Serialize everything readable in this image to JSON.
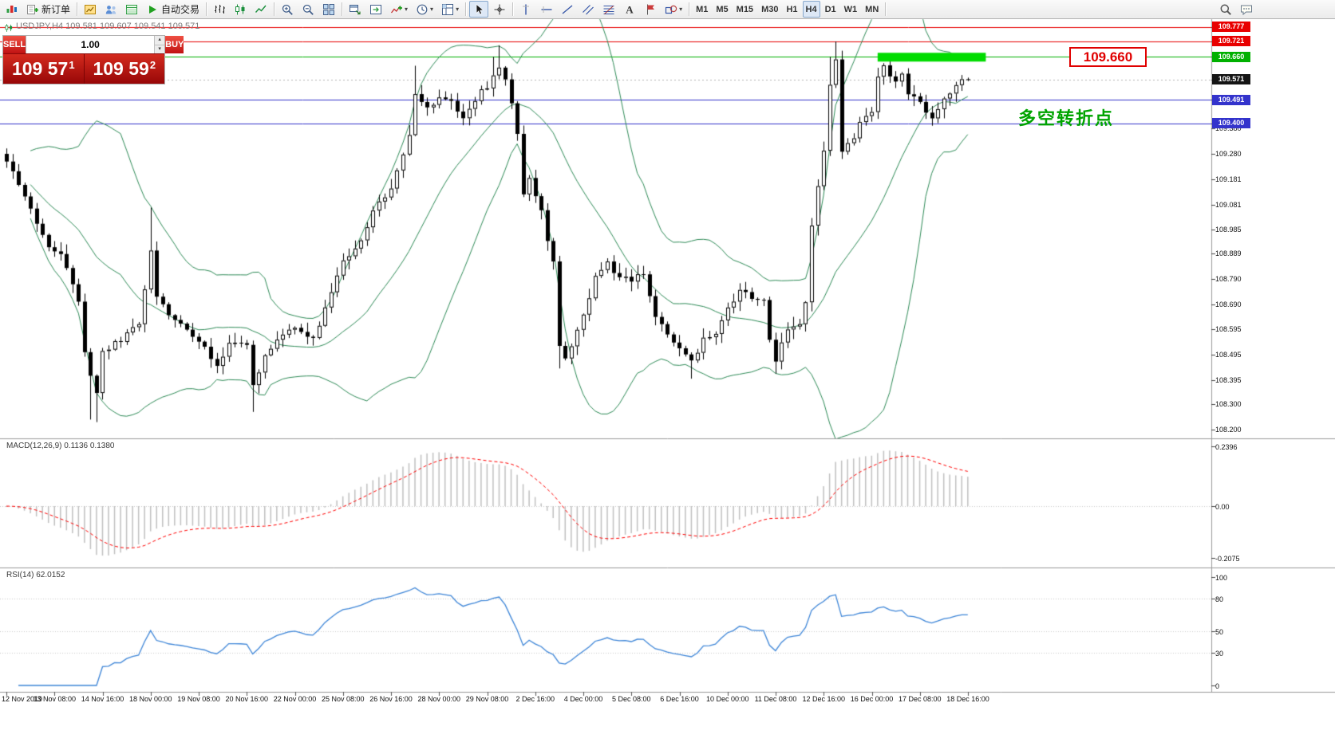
{
  "colors": {
    "accent_red": "#e00000",
    "hline_blue": "#3333cc",
    "hline_green": "#00b000",
    "highlight_green": "#00dc00",
    "bollinger_green": "#2e8b57",
    "macd_histogram": "#c0c0c0",
    "macd_signal": "#ff0000",
    "rsi_blue": "#3e86d8",
    "bid_box": "#141414"
  },
  "toolbar": {
    "groups": [
      {
        "items": [
          {
            "name": "app-logo",
            "icon": "logo",
            "interactable": false
          },
          {
            "name": "new-order-button",
            "icon": "new-order",
            "label": "新订单"
          }
        ]
      },
      {
        "items": [
          {
            "name": "charts-button",
            "icon": "chart-window"
          },
          {
            "name": "profiles-button",
            "icon": "profiles"
          },
          {
            "name": "data-window-button",
            "icon": "data-window"
          },
          {
            "name": "autotrading-button",
            "icon": "play",
            "label": "自动交易"
          }
        ]
      },
      {
        "items": [
          {
            "name": "bar-chart-button",
            "icon": "bars"
          },
          {
            "name": "candle-chart-button",
            "icon": "candles"
          },
          {
            "name": "line-chart-button",
            "icon": "line"
          }
        ]
      },
      {
        "items": [
          {
            "name": "zoom-in-button",
            "icon": "zoom-in"
          },
          {
            "name": "zoom-out-button",
            "icon": "zoom-out"
          },
          {
            "name": "tile-windows-button",
            "icon": "tile"
          }
        ]
      },
      {
        "items": [
          {
            "name": "auto-arrange-button",
            "icon": "arrange"
          },
          {
            "name": "chart-shift-button",
            "icon": "shift"
          },
          {
            "name": "indicators-button",
            "icon": "indicators",
            "dropdown": true
          },
          {
            "name": "periods-button",
            "icon": "clock",
            "dropdown": true
          },
          {
            "name": "templates-button",
            "icon": "template",
            "dropdown": true
          }
        ]
      },
      {
        "items": [
          {
            "name": "cursor-button",
            "icon": "cursor",
            "selected": true
          },
          {
            "name": "crosshair-button",
            "icon": "crosshair"
          }
        ]
      },
      {
        "items": [
          {
            "name": "vertical-line-button",
            "icon": "vline"
          },
          {
            "name": "horizontal-line-button",
            "icon": "hline"
          },
          {
            "name": "trendline-button",
            "icon": "trendline"
          },
          {
            "name": "channel-button",
            "icon": "channel"
          },
          {
            "name": "fibonacci-button",
            "icon": "fibonacci"
          },
          {
            "name": "text-label-button",
            "icon": "text"
          },
          {
            "name": "arrow-tool-button",
            "icon": "arrow-flag"
          },
          {
            "name": "shapes-button",
            "icon": "shapes",
            "dropdown": true
          }
        ]
      },
      {
        "timeframes": true,
        "items": [
          {
            "label": "M1"
          },
          {
            "label": "M5"
          },
          {
            "label": "M15"
          },
          {
            "label": "M30"
          },
          {
            "label": "H1"
          },
          {
            "label": "H4",
            "selected": true
          },
          {
            "label": "D1"
          },
          {
            "label": "W1"
          },
          {
            "label": "MN"
          }
        ]
      },
      {
        "right": true,
        "items": [
          {
            "name": "search-button",
            "icon": "search"
          },
          {
            "name": "quick-message-button",
            "icon": "chat"
          }
        ]
      }
    ]
  },
  "chart_header": {
    "symbol_info": "USDJPY,H4 109.581 109.607 109.541 109.571"
  },
  "trade_panel": {
    "sell_label": "SELL",
    "buy_label": "BUY",
    "lot_value": "1.00",
    "bid_main": "109 57",
    "bid_point": "1",
    "ask_main": "109 59",
    "ask_point": "2"
  },
  "indicator_labels": {
    "macd": "MACD(12,26,9) 0.1136 0.1380",
    "rsi": "RSI(14) 62.0152"
  },
  "annotations": {
    "turning_point": "多空转折点",
    "price_callout": "109.660"
  },
  "chart_data": {
    "type": "candlestick",
    "symbol": "USDJPY",
    "timeframe": "H4",
    "ohlc_display": {
      "open": "109.581",
      "high": "109.607",
      "low": "109.541",
      "close": "109.571"
    },
    "ylim": [
      108.2,
      109.82
    ],
    "price_axis_labels": [
      "109.380",
      "109.280",
      "109.181",
      "109.081",
      "108.985",
      "108.889",
      "108.790",
      "108.690",
      "108.595",
      "108.495",
      "108.395",
      "108.300",
      "108.200"
    ],
    "macd_axis_labels": [
      "0.2396",
      "0.00",
      "-0.2075"
    ],
    "rsi_axis_labels": [
      "100",
      "80",
      "50",
      "30",
      "0"
    ],
    "time_axis_labels": [
      "12 Nov 2019",
      "13 Nov 08:00",
      "14 Nov 16:00",
      "18 Nov 00:00",
      "19 Nov 08:00",
      "20 Nov 16:00",
      "22 Nov 00:00",
      "25 Nov 08:00",
      "26 Nov 16:00",
      "28 Nov 00:00",
      "29 Nov 08:00",
      "2 Dec 16:00",
      "4 Dec 00:00",
      "5 Dec 08:00",
      "6 Dec 16:00",
      "10 Dec 00:00",
      "11 Dec 08:00",
      "12 Dec 16:00",
      "16 Dec 00:00",
      "17 Dec 08:00",
      "18 Dec 16:00"
    ],
    "horizontal_lines": [
      {
        "label": "109.777",
        "value": 109.777,
        "color": "#e80000"
      },
      {
        "label": "109.721",
        "value": 109.721,
        "color": "#e80000"
      },
      {
        "label": "109.660",
        "value": 109.66,
        "color": "#00b000"
      },
      {
        "label": "109.491",
        "value": 109.491,
        "color": "#3333cc"
      },
      {
        "label": "109.400",
        "value": 109.4,
        "color": "#3333cc"
      }
    ],
    "bid_price": {
      "label": "109.571",
      "value": 109.571
    },
    "highlight_rect": {
      "value": 109.66,
      "i_start": 145,
      "i_end": 163
    },
    "candles": {
      "count": 161,
      "close_anchors": [
        [
          0,
          109.25
        ],
        [
          3,
          109.12
        ],
        [
          6,
          108.95
        ],
        [
          9,
          108.88
        ],
        [
          12,
          108.7
        ],
        [
          13,
          108.5
        ],
        [
          15,
          108.35
        ],
        [
          16,
          108.5
        ],
        [
          19,
          108.55
        ],
        [
          22,
          108.62
        ],
        [
          24,
          108.9
        ],
        [
          25,
          108.72
        ],
        [
          27,
          108.65
        ],
        [
          32,
          108.55
        ],
        [
          35,
          108.45
        ],
        [
          37,
          108.55
        ],
        [
          40,
          108.52
        ],
        [
          41,
          108.38
        ],
        [
          43,
          108.48
        ],
        [
          45,
          108.55
        ],
        [
          48,
          108.6
        ],
        [
          51,
          108.55
        ],
        [
          53,
          108.68
        ],
        [
          56,
          108.85
        ],
        [
          59,
          108.95
        ],
        [
          61,
          109.05
        ],
        [
          64,
          109.15
        ],
        [
          67,
          109.35
        ],
        [
          68,
          109.5
        ],
        [
          70,
          109.45
        ],
        [
          72,
          109.5
        ],
        [
          74,
          109.48
        ],
        [
          76,
          109.42
        ],
        [
          78,
          109.5
        ],
        [
          80,
          109.55
        ],
        [
          82,
          109.62
        ],
        [
          83,
          109.58
        ],
        [
          85,
          109.35
        ],
        [
          86,
          109.12
        ],
        [
          87,
          109.18
        ],
        [
          89,
          109.05
        ],
        [
          91,
          108.85
        ],
        [
          92,
          108.52
        ],
        [
          93,
          108.48
        ],
        [
          95,
          108.6
        ],
        [
          96,
          108.65
        ],
        [
          98,
          108.8
        ],
        [
          100,
          108.85
        ],
        [
          102,
          108.8
        ],
        [
          104,
          108.78
        ],
        [
          106,
          108.82
        ],
        [
          108,
          108.65
        ],
        [
          110,
          108.58
        ],
        [
          112,
          108.52
        ],
        [
          114,
          108.48
        ],
        [
          116,
          108.55
        ],
        [
          118,
          108.58
        ],
        [
          120,
          108.68
        ],
        [
          122,
          108.75
        ],
        [
          124,
          108.72
        ],
        [
          126,
          108.7
        ],
        [
          127,
          108.55
        ],
        [
          128,
          108.48
        ],
        [
          130,
          108.58
        ],
        [
          132,
          108.62
        ],
        [
          133,
          108.7
        ],
        [
          134,
          109.0
        ],
        [
          136,
          109.3
        ],
        [
          137,
          109.55
        ],
        [
          138,
          109.65
        ],
        [
          139,
          109.28
        ],
        [
          141,
          109.35
        ],
        [
          142,
          109.4
        ],
        [
          144,
          109.45
        ],
        [
          145,
          109.58
        ],
        [
          146,
          109.62
        ],
        [
          148,
          109.55
        ],
        [
          149,
          109.58
        ],
        [
          150,
          109.52
        ],
        [
          152,
          109.48
        ],
        [
          154,
          109.42
        ],
        [
          155,
          109.45
        ],
        [
          156,
          109.5
        ],
        [
          158,
          109.55
        ],
        [
          160,
          109.571
        ]
      ],
      "wick_events": [
        {
          "i": 14,
          "low": 108.24
        },
        {
          "i": 15,
          "low": 108.23
        },
        {
          "i": 24,
          "high": 109.07
        },
        {
          "i": 41,
          "low": 108.27
        },
        {
          "i": 68,
          "high": 109.625
        },
        {
          "i": 81,
          "high": 109.66
        },
        {
          "i": 82,
          "high": 109.705
        },
        {
          "i": 92,
          "low": 108.44
        },
        {
          "i": 114,
          "low": 108.4
        },
        {
          "i": 128,
          "low": 108.42
        },
        {
          "i": 137,
          "high": 109.66
        },
        {
          "i": 138,
          "high": 109.72
        },
        {
          "i": 154,
          "low": 109.39
        }
      ]
    },
    "indicators": {
      "bollinger": {
        "period": 20,
        "deviation": 2
      },
      "macd": {
        "fast": 12,
        "slow": 26,
        "signal": 9,
        "main_value": 0.1136,
        "signal_value": 0.138
      },
      "rsi": {
        "period": 14,
        "value": 62.0152,
        "levels": [
          80,
          50,
          30
        ]
      }
    }
  }
}
